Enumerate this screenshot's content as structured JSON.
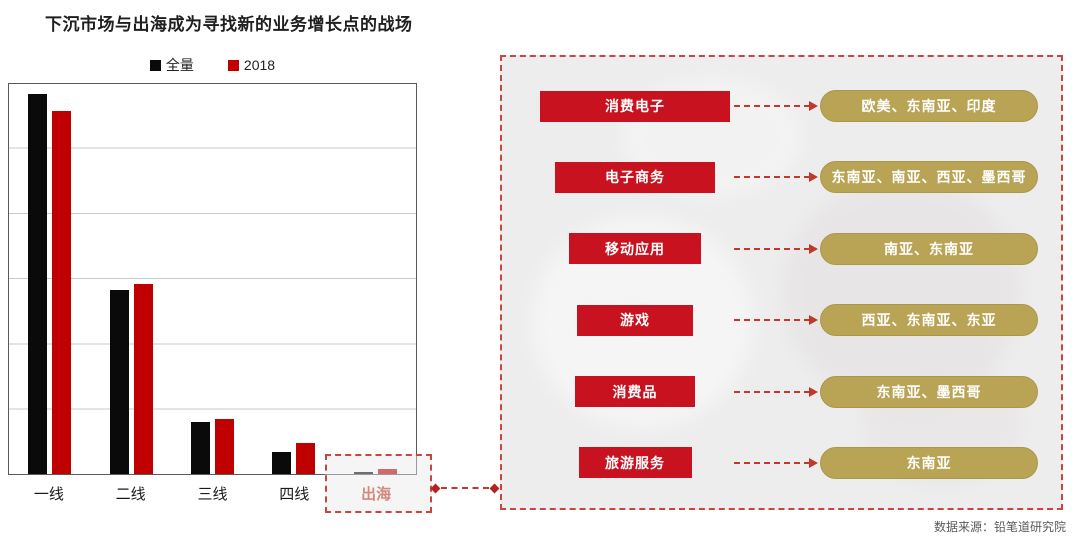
{
  "page": {
    "title": "下沉市场与出海成为寻找新的业务增长点的战场",
    "source": "数据来源：铅笔道研究院"
  },
  "chart_data": {
    "type": "bar",
    "title": "下沉市场与出海成为寻找新的业务增长点的战场",
    "categories": [
      "一线",
      "二线",
      "三线",
      "四线",
      "出海"
    ],
    "series": [
      {
        "name": "全量",
        "color": "#0a0a0a",
        "values": [
          97.5,
          47.2,
          13.4,
          5.6,
          0.6
        ]
      },
      {
        "name": "2018",
        "color": "#c00000",
        "values": [
          93.0,
          48.7,
          14.1,
          7.9,
          1.2
        ]
      }
    ],
    "xlabel": "",
    "ylabel": "",
    "ylim": [
      0,
      100
    ],
    "gridlines": 6,
    "grid": true,
    "legend_position": "top",
    "highlight_category": "出海"
  },
  "panel": {
    "rows": [
      {
        "category": "消费电子",
        "regions": "欧美、东南亚、印度"
      },
      {
        "category": "电子商务",
        "regions": "东南亚、南亚、西亚、墨西哥"
      },
      {
        "category": "移动应用",
        "regions": "南亚、东南亚"
      },
      {
        "category": "游戏",
        "regions": "西亚、东南亚、东亚"
      },
      {
        "category": "消费品",
        "regions": "东南亚、墨西哥"
      },
      {
        "category": "旅游服务",
        "regions": "东南亚"
      }
    ]
  },
  "colors": {
    "category_box": "#c8121f",
    "region_pill": "#b9a455",
    "arrow": "#c0392b",
    "dashed_border": "#c9453f",
    "series_total": "#0a0a0a",
    "series_2018": "#c00000",
    "panel_background": "#eeedee"
  }
}
